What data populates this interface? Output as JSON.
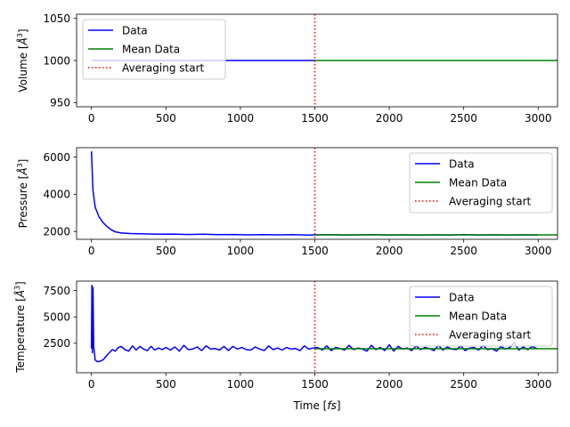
{
  "chart_data": [
    {
      "type": "line",
      "ylabel": "Volume [Å³]",
      "xlabel": "",
      "xlim": [
        -100,
        3130
      ],
      "ylim": [
        945,
        1055
      ],
      "xticks": [
        0,
        500,
        1000,
        1500,
        2000,
        2500,
        3000
      ],
      "yticks": [
        950,
        1000,
        1050
      ],
      "averaging_start": 1500,
      "legend_position": "top-left",
      "series": [
        {
          "name": "Data",
          "color": "#0000ff",
          "x": [
            0,
            1500
          ],
          "y": [
            1000,
            1000
          ]
        },
        {
          "name": "Mean Data",
          "color": "#008000",
          "x": [
            1500,
            3130
          ],
          "y": [
            1000,
            1000
          ]
        },
        {
          "name": "Averaging start",
          "color": "#ff0000",
          "style": "dotted"
        }
      ]
    },
    {
      "type": "line",
      "ylabel": "Pressure [Å³]",
      "xlabel": "",
      "xlim": [
        -100,
        3130
      ],
      "ylim": [
        1580,
        6500
      ],
      "xticks": [
        0,
        500,
        1000,
        1500,
        2000,
        2500,
        3000
      ],
      "yticks": [
        2000,
        4000,
        6000
      ],
      "averaging_start": 1500,
      "legend_position": "top-right",
      "series": [
        {
          "name": "Data",
          "color": "#0000ff",
          "x": [
            0,
            10,
            25,
            50,
            75,
            100,
            130,
            160,
            200,
            260,
            350,
            450,
            550,
            650,
            750,
            850,
            950,
            1050,
            1150,
            1250,
            1350,
            1450,
            1500,
            1600,
            1700,
            1800,
            1900,
            2000,
            2100,
            2200,
            2300,
            2400,
            2500,
            2600,
            2700,
            2800,
            2900,
            3000
          ],
          "y": [
            6300,
            4200,
            3300,
            2800,
            2500,
            2300,
            2100,
            1980,
            1920,
            1890,
            1870,
            1850,
            1860,
            1840,
            1850,
            1830,
            1840,
            1820,
            1830,
            1820,
            1830,
            1810,
            1820,
            1830,
            1810,
            1820,
            1830,
            1810,
            1820,
            1800,
            1820,
            1810,
            1830,
            1810,
            1820,
            1810,
            1820,
            1810
          ]
        },
        {
          "name": "Mean Data",
          "color": "#008000",
          "x": [
            1500,
            3130
          ],
          "y": [
            1820,
            1820
          ]
        },
        {
          "name": "Averaging start",
          "color": "#ff0000",
          "style": "dotted"
        }
      ]
    },
    {
      "type": "line",
      "ylabel": "Temperature [Å³]",
      "xlabel": "Time [fs]",
      "xlim": [
        -100,
        3130
      ],
      "ylim": [
        -300,
        8400
      ],
      "xticks": [
        0,
        500,
        1000,
        1500,
        2000,
        2500,
        3000
      ],
      "yticks": [
        2500,
        5000,
        7500
      ],
      "averaging_start": 1500,
      "legend_position": "top-right",
      "series": [
        {
          "name": "Data",
          "color": "#0000ff",
          "x": [
            0,
            3,
            6,
            10,
            15,
            25,
            40,
            60,
            80,
            100,
            120,
            140,
            160,
            180,
            200,
            225,
            250,
            275,
            300,
            325,
            350,
            375,
            400,
            425,
            450,
            475,
            500,
            530,
            560,
            590,
            620,
            650,
            680,
            710,
            740,
            770,
            800,
            830,
            860,
            890,
            920,
            950,
            980,
            1010,
            1040,
            1070,
            1100,
            1130,
            1160,
            1190,
            1220,
            1250,
            1280,
            1310,
            1340,
            1370,
            1400,
            1430,
            1460,
            1490,
            1520,
            1550,
            1580,
            1610,
            1640,
            1670,
            1700,
            1730,
            1760,
            1790,
            1820,
            1850,
            1880,
            1910,
            1940,
            1970,
            2000,
            2030,
            2060,
            2090,
            2120,
            2150,
            2180,
            2210,
            2240,
            2270,
            2300,
            2330,
            2360,
            2390,
            2420,
            2450,
            2480,
            2510,
            2540,
            2570,
            2600,
            2630,
            2660,
            2690,
            2720,
            2750,
            2780,
            2810,
            2840,
            2870,
            2900,
            2930,
            2960,
            2990
          ],
          "y": [
            2000,
            8000,
            1600,
            7800,
            2200,
            900,
            750,
            800,
            950,
            1300,
            1600,
            1900,
            1750,
            2100,
            2200,
            1900,
            1750,
            2250,
            1850,
            2200,
            1950,
            1800,
            2200,
            1850,
            2050,
            1900,
            2100,
            1850,
            2150,
            1750,
            2300,
            1900,
            1950,
            2150,
            1800,
            2250,
            1950,
            2000,
            1850,
            2200,
            1800,
            2200,
            1950,
            2100,
            1900,
            1850,
            2150,
            1950,
            1800,
            2250,
            1900,
            2050,
            1850,
            2100,
            1950,
            2000,
            1800,
            2250,
            1950,
            2050,
            2100,
            1850,
            2250,
            1800,
            2100,
            2000,
            1850,
            2300,
            1900,
            2050,
            1950,
            1750,
            2300,
            1900,
            2100,
            1800,
            2350,
            1750,
            2200,
            1950,
            2050,
            1800,
            2250,
            1900,
            2100,
            2000,
            1800,
            2300,
            1850,
            2150,
            1950,
            1900,
            2250,
            1800,
            2050,
            2100,
            1850,
            2300,
            1900,
            2000,
            1750,
            2200,
            1950,
            2100,
            2550,
            1850,
            2150,
            1900,
            2200,
            2000
          ]
        },
        {
          "name": "Mean Data",
          "color": "#008000",
          "x": [
            1500,
            3130
          ],
          "y": [
            1980,
            1980
          ]
        },
        {
          "name": "Averaging start",
          "color": "#ff0000",
          "style": "dotted"
        }
      ]
    }
  ]
}
